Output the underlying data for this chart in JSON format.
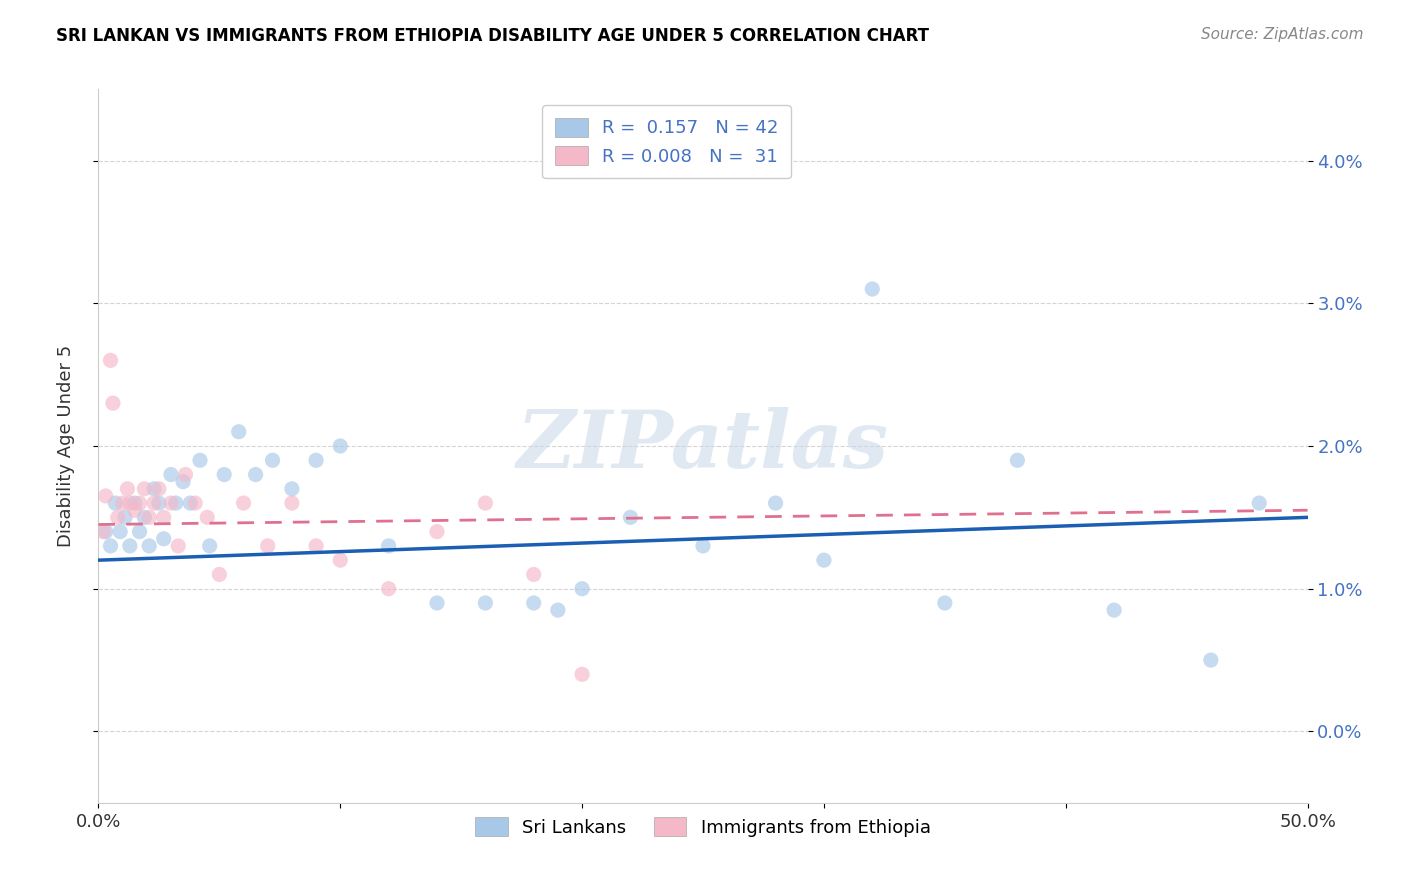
{
  "title": "SRI LANKAN VS IMMIGRANTS FROM ETHIOPIA DISABILITY AGE UNDER 5 CORRELATION CHART",
  "source": "Source: ZipAtlas.com",
  "ylabel": "Disability Age Under 5",
  "xlim": [
    0.0,
    0.5
  ],
  "ylim": [
    -0.005,
    0.045
  ],
  "yticks": [
    0.0,
    0.01,
    0.02,
    0.03,
    0.04
  ],
  "ytick_labels": [
    "0.0%",
    "1.0%",
    "2.0%",
    "3.0%",
    "4.0%"
  ],
  "xticks": [
    0.0,
    0.1,
    0.2,
    0.3,
    0.4,
    0.5
  ],
  "xtick_labels": [
    "0.0%",
    "",
    "",
    "",
    "",
    "50.0%"
  ],
  "legend_entries": [
    {
      "label": "R =  0.157   N = 42",
      "color": "#a8c8e8"
    },
    {
      "label": "R = 0.008   N =  31",
      "color": "#f4b8c8"
    }
  ],
  "sri_lankans_x": [
    0.003,
    0.005,
    0.007,
    0.009,
    0.011,
    0.013,
    0.015,
    0.017,
    0.019,
    0.021,
    0.023,
    0.025,
    0.027,
    0.03,
    0.032,
    0.035,
    0.038,
    0.042,
    0.046,
    0.052,
    0.058,
    0.065,
    0.072,
    0.08,
    0.09,
    0.1,
    0.12,
    0.14,
    0.16,
    0.19,
    0.22,
    0.25,
    0.28,
    0.32,
    0.38,
    0.42,
    0.46,
    0.48,
    0.3,
    0.2,
    0.18,
    0.35
  ],
  "sri_lankans_y": [
    0.014,
    0.013,
    0.016,
    0.014,
    0.015,
    0.013,
    0.016,
    0.014,
    0.015,
    0.013,
    0.017,
    0.016,
    0.0135,
    0.018,
    0.016,
    0.0175,
    0.016,
    0.019,
    0.013,
    0.018,
    0.021,
    0.018,
    0.019,
    0.017,
    0.019,
    0.02,
    0.013,
    0.009,
    0.009,
    0.0085,
    0.015,
    0.013,
    0.016,
    0.031,
    0.019,
    0.0085,
    0.005,
    0.016,
    0.012,
    0.01,
    0.009,
    0.009
  ],
  "ethiopia_x": [
    0.002,
    0.003,
    0.005,
    0.006,
    0.008,
    0.01,
    0.012,
    0.013,
    0.015,
    0.017,
    0.019,
    0.021,
    0.023,
    0.025,
    0.027,
    0.03,
    0.033,
    0.036,
    0.04,
    0.045,
    0.05,
    0.06,
    0.07,
    0.08,
    0.09,
    0.1,
    0.12,
    0.14,
    0.16,
    0.18,
    0.2
  ],
  "ethiopia_y": [
    0.014,
    0.0165,
    0.026,
    0.023,
    0.015,
    0.016,
    0.017,
    0.016,
    0.0155,
    0.016,
    0.017,
    0.015,
    0.016,
    0.017,
    0.015,
    0.016,
    0.013,
    0.018,
    0.016,
    0.015,
    0.011,
    0.016,
    0.013,
    0.016,
    0.013,
    0.012,
    0.01,
    0.014,
    0.016,
    0.011,
    0.004
  ],
  "blue_dot_color": "#a8c8e8",
  "pink_dot_color": "#f4b8c8",
  "blue_line_color": "#1a5fb4",
  "pink_line_color": "#e07090",
  "watermark_text": "ZIPatlas",
  "background_color": "#ffffff",
  "grid_color": "#d0d0d0",
  "dot_size": 120,
  "dot_alpha": 0.65,
  "blue_line_slope": 0.006,
  "blue_line_intercept": 0.012,
  "pink_line_slope": 0.002,
  "pink_line_intercept": 0.0145
}
